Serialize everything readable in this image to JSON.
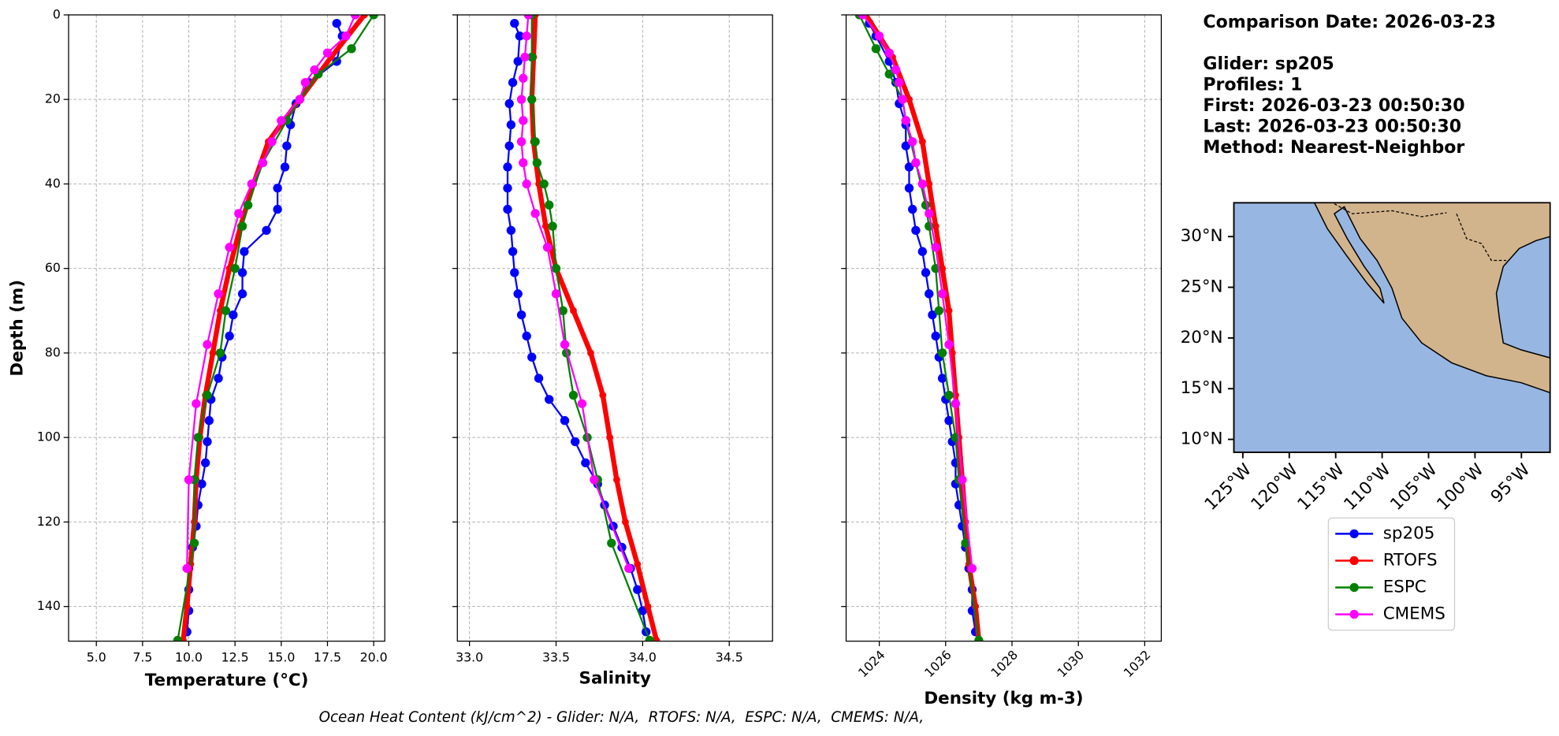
{
  "chart_data": [
    {
      "type": "line",
      "xlabel": "Temperature (°C)",
      "ylabel": "Depth (m)",
      "xlim": [
        3.5,
        20.6
      ],
      "ylim": [
        0,
        148.2
      ],
      "invert_y": true,
      "grid": true,
      "ytick_labels": true,
      "xticks": [
        {
          "value": 5,
          "label": "5.0"
        },
        7.5,
        {
          "value": 10,
          "label": "10.0"
        },
        12.5,
        {
          "value": 15,
          "label": "15.0"
        },
        17.5,
        {
          "value": 20,
          "label": "20.0"
        }
      ],
      "yticks": [
        0,
        20,
        40,
        60,
        80,
        100,
        120,
        140
      ],
      "series": [
        {
          "name": "sp205",
          "color": "#0000ff",
          "y": [
            2,
            5,
            11,
            16,
            21,
            26,
            31,
            36,
            41,
            46,
            51,
            56,
            61,
            66,
            71,
            76,
            81,
            86,
            91,
            96,
            101,
            106,
            111,
            116,
            121,
            126,
            131,
            136,
            141,
            146
          ],
          "values": [
            18.0,
            18.3,
            18.0,
            16.5,
            15.8,
            15.5,
            15.3,
            15.2,
            14.8,
            14.8,
            14.2,
            13.0,
            12.9,
            12.9,
            12.4,
            12.2,
            11.8,
            11.6,
            11.2,
            11.1,
            11.0,
            10.9,
            10.7,
            10.5,
            10.4,
            10.2,
            10.0,
            10.0,
            10.0,
            9.9
          ]
        },
        {
          "name": "RTOFS",
          "color": "#ff0000",
          "y": [
            0,
            10,
            20,
            30,
            40,
            50,
            60,
            70,
            80,
            90,
            100,
            110,
            120,
            130,
            140,
            148
          ],
          "values": [
            19.5,
            17.7,
            16.0,
            14.3,
            13.5,
            12.8,
            12.2,
            11.7,
            11.3,
            10.9,
            10.6,
            10.4,
            10.3,
            10.1,
            9.9,
            9.7
          ]
        },
        {
          "name": "ESPC",
          "color": "#008000",
          "y": [
            0,
            8,
            14,
            20,
            25,
            35,
            45,
            50,
            60,
            70,
            80,
            90,
            100,
            110,
            125,
            148
          ],
          "values": [
            20.0,
            18.8,
            17.0,
            16.0,
            15.3,
            14.0,
            13.2,
            12.9,
            12.5,
            12.0,
            11.7,
            11.0,
            10.5,
            10.3,
            10.3,
            9.4
          ]
        },
        {
          "name": "CMEMS",
          "color": "#ff00ff",
          "y": [
            0,
            5,
            9,
            13,
            16,
            20,
            25,
            30,
            35,
            40,
            47,
            55,
            66,
            78,
            92,
            110,
            131
          ],
          "values": [
            19.0,
            18.5,
            17.5,
            16.8,
            16.3,
            16.0,
            15.0,
            14.5,
            14.0,
            13.4,
            12.7,
            12.2,
            11.6,
            11.0,
            10.4,
            10.0,
            9.9
          ]
        }
      ]
    },
    {
      "type": "line",
      "xlabel": "Salinity",
      "xlim": [
        32.93,
        34.75
      ],
      "ylim": [
        0,
        148.2
      ],
      "invert_y": true,
      "grid": true,
      "ytick_labels": false,
      "xticks": [
        {
          "value": 33,
          "label": "33.0"
        },
        33.5,
        {
          "value": 34,
          "label": "34.0"
        },
        34.5
      ],
      "yticks": [
        0,
        20,
        40,
        60,
        80,
        100,
        120,
        140
      ],
      "series": [
        {
          "name": "sp205",
          "color": "#0000ff",
          "y": [
            2,
            5,
            11,
            16,
            21,
            26,
            31,
            36,
            41,
            46,
            51,
            56,
            61,
            66,
            71,
            76,
            81,
            86,
            91,
            96,
            101,
            106,
            111,
            116,
            121,
            126,
            131,
            136,
            141,
            146
          ],
          "values": [
            33.26,
            33.29,
            33.28,
            33.25,
            33.23,
            33.24,
            33.23,
            33.22,
            33.22,
            33.22,
            33.24,
            33.25,
            33.26,
            33.28,
            33.3,
            33.33,
            33.36,
            33.4,
            33.46,
            33.55,
            33.61,
            33.67,
            33.74,
            33.78,
            33.83,
            33.88,
            33.93,
            33.97,
            34.0,
            34.02
          ]
        },
        {
          "name": "RTOFS",
          "color": "#ff0000",
          "y": [
            0,
            10,
            20,
            30,
            40,
            50,
            60,
            70,
            80,
            90,
            100,
            110,
            120,
            130,
            140,
            148
          ],
          "values": [
            33.38,
            33.37,
            33.36,
            33.37,
            33.4,
            33.44,
            33.5,
            33.6,
            33.7,
            33.77,
            33.81,
            33.85,
            33.9,
            33.97,
            34.03,
            34.08
          ]
        },
        {
          "name": "ESPC",
          "color": "#008000",
          "y": [
            0,
            10,
            20,
            30,
            35,
            40,
            45,
            50,
            60,
            70,
            80,
            90,
            100,
            110,
            125,
            148
          ],
          "values": [
            33.36,
            33.36,
            33.36,
            33.38,
            33.39,
            33.43,
            33.46,
            33.48,
            33.5,
            33.54,
            33.56,
            33.6,
            33.68,
            33.74,
            33.82,
            34.04
          ]
        },
        {
          "name": "CMEMS",
          "color": "#ff00ff",
          "y": [
            0,
            5,
            10,
            15,
            20,
            25,
            30,
            35,
            40,
            47,
            55,
            66,
            78,
            92,
            110,
            131
          ],
          "values": [
            33.34,
            33.33,
            33.32,
            33.31,
            33.3,
            33.31,
            33.3,
            33.31,
            33.33,
            33.38,
            33.45,
            33.5,
            33.55,
            33.65,
            33.72,
            33.92
          ]
        }
      ]
    },
    {
      "type": "line",
      "xlabel": "Density (kg m-3)",
      "xlim": [
        1023.0,
        1032.5
      ],
      "ylim": [
        0,
        148.2
      ],
      "invert_y": true,
      "grid": true,
      "ytick_labels": false,
      "xtick_rotation": 45,
      "xticks": [
        1024,
        1026,
        1028,
        1030,
        1032
      ],
      "yticks": [
        0,
        20,
        40,
        60,
        80,
        100,
        120,
        140
      ],
      "series": [
        {
          "name": "sp205",
          "color": "#0000ff",
          "y": [
            2,
            5,
            11,
            16,
            21,
            26,
            31,
            36,
            41,
            46,
            51,
            56,
            61,
            66,
            71,
            76,
            81,
            86,
            91,
            96,
            101,
            106,
            111,
            116,
            121,
            126,
            131,
            136,
            141,
            146
          ],
          "values": [
            1023.7,
            1023.9,
            1024.3,
            1024.5,
            1024.6,
            1024.8,
            1024.8,
            1024.9,
            1024.9,
            1025.0,
            1025.1,
            1025.3,
            1025.4,
            1025.5,
            1025.6,
            1025.7,
            1025.8,
            1025.9,
            1026.0,
            1026.1,
            1026.2,
            1026.3,
            1026.3,
            1026.4,
            1026.5,
            1026.6,
            1026.7,
            1026.8,
            1026.8,
            1026.9
          ]
        },
        {
          "name": "RTOFS",
          "color": "#ff0000",
          "y": [
            0,
            10,
            20,
            30,
            40,
            50,
            60,
            70,
            80,
            90,
            100,
            110,
            120,
            130,
            140,
            148
          ],
          "values": [
            1023.6,
            1024.4,
            1024.9,
            1025.3,
            1025.5,
            1025.7,
            1025.9,
            1026.1,
            1026.2,
            1026.3,
            1026.4,
            1026.5,
            1026.6,
            1026.7,
            1026.9,
            1027.0
          ]
        },
        {
          "name": "ESPC",
          "color": "#008000",
          "y": [
            0,
            8,
            14,
            20,
            25,
            35,
            45,
            50,
            60,
            70,
            80,
            90,
            100,
            110,
            125,
            148
          ],
          "values": [
            1023.4,
            1023.9,
            1024.3,
            1024.7,
            1024.8,
            1025.1,
            1025.4,
            1025.5,
            1025.7,
            1025.8,
            1025.9,
            1026.1,
            1026.3,
            1026.4,
            1026.6,
            1027.0
          ]
        },
        {
          "name": "CMEMS",
          "color": "#ff00ff",
          "y": [
            0,
            5,
            9,
            13,
            16,
            20,
            25,
            30,
            35,
            40,
            47,
            55,
            66,
            78,
            92,
            110,
            131
          ],
          "values": [
            1023.5,
            1024.0,
            1024.3,
            1024.5,
            1024.6,
            1024.7,
            1024.8,
            1025.0,
            1025.1,
            1025.3,
            1025.5,
            1025.7,
            1025.9,
            1026.1,
            1026.3,
            1026.5,
            1026.8
          ]
        }
      ]
    }
  ],
  "info": [
    "Comparison Date: 2026-03-23",
    "Glider: sp205",
    "Profiles: 1",
    "First: 2026-03-23 00:50:30",
    "Last: 2026-03-23 00:50:30",
    "Method: Nearest-Neighbor"
  ],
  "map": {
    "lat_labels": [
      "30°N",
      "25°N",
      "20°N",
      "15°N",
      "10°N"
    ],
    "lon_labels": [
      "125°W",
      "120°W",
      "115°W",
      "110°W",
      "105°W",
      "100°W",
      "95°W"
    ]
  },
  "footer": "Ocean Heat Content (kJ/cm^2) - Glider: N/A,  RTOFS: N/A,  ESPC: N/A,  CMEMS: N/A,"
}
